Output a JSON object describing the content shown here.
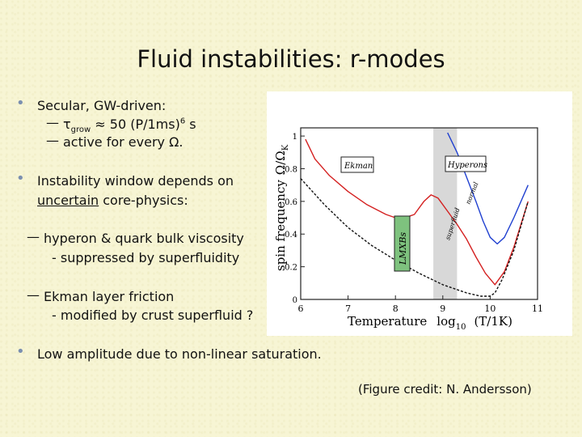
{
  "slide": {
    "title": "Fluid instabilities: r-modes",
    "bullet1": {
      "text": "Secular, GW-driven:",
      "sub1_prefix": "τ",
      "sub1_subscript": "grow",
      "sub1_suffix": " ≈ 50 (P/1ms)",
      "sub1_sup": "6",
      "sub1_unit": " s",
      "sub2": "active for every Ω."
    },
    "bullet2": {
      "line1": "Instability window depends on",
      "line2_underlined": "uncertain",
      "line2_rest": " core-physics:"
    },
    "item_hyperon": {
      "line1": "hyperon & quark bulk viscosity",
      "line2": "- suppressed by superfluidity"
    },
    "item_ekman": {
      "line1": "Ekman layer friction",
      "line2": "- modified by crust superfluid ?"
    },
    "bullet3": "Low amplitude due to non-linear saturation.",
    "credit": "(Figure credit: N. Andersson)"
  },
  "chart_data": {
    "type": "line",
    "title": "",
    "xlabel_parts": [
      "Temperature",
      "log",
      "10",
      "(T/1K)"
    ],
    "ylabel": "spin frequency",
    "ylabel_symbol": "Ω/Ω",
    "ylabel_symbol_sub": "K",
    "xlim": [
      6,
      11
    ],
    "ylim": [
      0,
      1.05
    ],
    "x_ticks": [
      "6",
      "7",
      "8",
      "9",
      "10",
      "11"
    ],
    "y_ticks": [
      "0",
      "0.2",
      "0.4",
      "0.6",
      "0.8",
      "1"
    ],
    "shaded_band": [
      8.8,
      9.3
    ],
    "labels": {
      "ekman": "Ekman",
      "hyperons": "Hyperons",
      "lmxbs": "LMXBs",
      "normal": "normal",
      "superfluid": "superfluid"
    },
    "colors": {
      "red": "#d42020",
      "blue": "#2040d0",
      "black": "#111111",
      "band": "#d8d8d8",
      "lmxb": "#7ec27e"
    },
    "series": [
      {
        "color": "red",
        "x": [
          6.1,
          6.3,
          6.6,
          7.0,
          7.4,
          7.8,
          8.1,
          8.4,
          8.6,
          8.75,
          8.9,
          9.1,
          9.3,
          9.5,
          9.7,
          9.9,
          10.1,
          10.3,
          10.5,
          10.8
        ],
        "y": [
          0.98,
          0.86,
          0.76,
          0.66,
          0.58,
          0.52,
          0.49,
          0.52,
          0.6,
          0.64,
          0.62,
          0.54,
          0.46,
          0.37,
          0.26,
          0.16,
          0.09,
          0.17,
          0.32,
          0.6
        ]
      },
      {
        "color": "blue",
        "x": [
          9.1,
          9.3,
          9.5,
          9.7,
          9.85,
          10.0,
          10.15,
          10.3,
          10.5,
          10.8
        ],
        "y": [
          1.02,
          0.9,
          0.75,
          0.6,
          0.48,
          0.38,
          0.34,
          0.38,
          0.5,
          0.7
        ]
      },
      {
        "color": "black",
        "dashed": true,
        "x": [
          6.0,
          6.5,
          7.0,
          7.5,
          8.0,
          8.5,
          9.0,
          9.5,
          9.8,
          10.0,
          10.1,
          10.25,
          10.5,
          10.8
        ],
        "y": [
          0.74,
          0.58,
          0.44,
          0.33,
          0.24,
          0.16,
          0.09,
          0.04,
          0.02,
          0.02,
          0.04,
          0.12,
          0.3,
          0.6
        ]
      }
    ]
  }
}
